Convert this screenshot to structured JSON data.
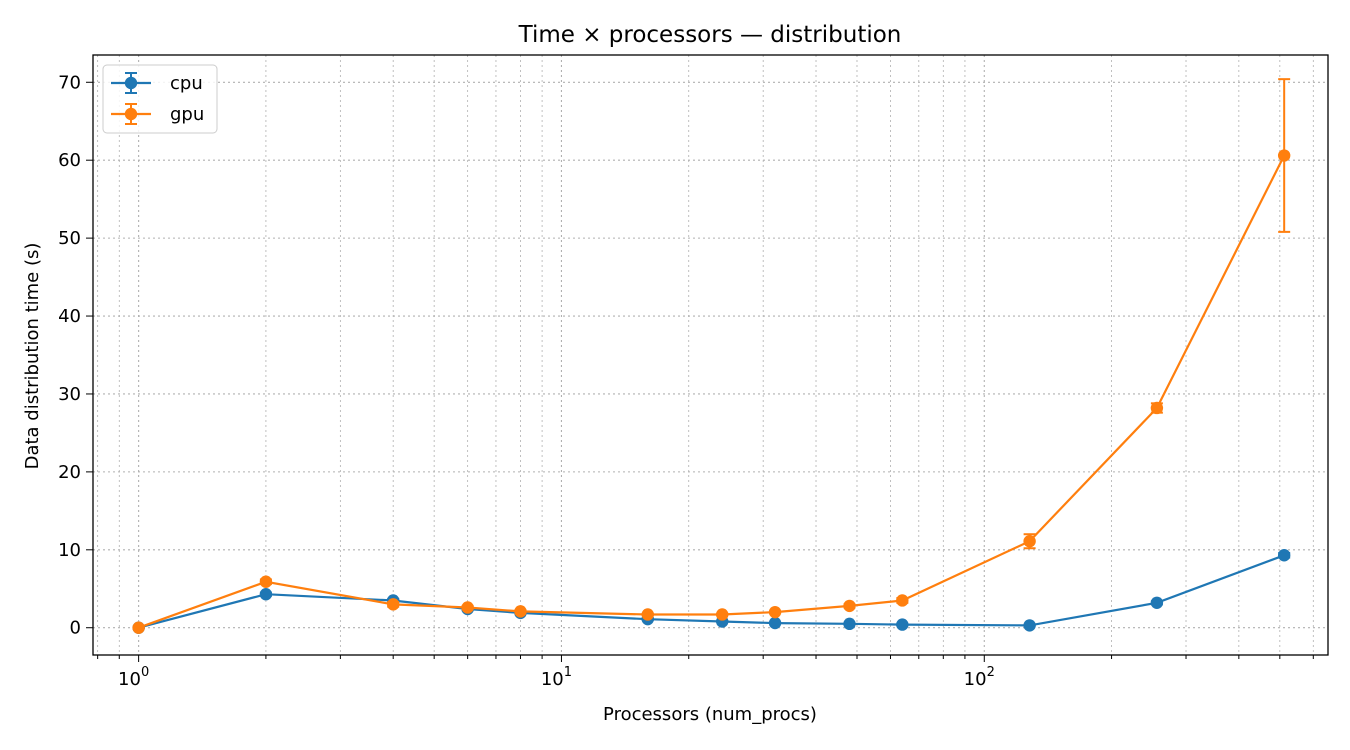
{
  "chart_data": {
    "type": "line",
    "title": "Time × processors — distribution",
    "xlabel": "Processors (num_procs)",
    "ylabel": "Data distribution time (s)",
    "xscale": "log",
    "xlim": [
      0.78,
      650
    ],
    "ylim": [
      -3.5,
      73.5
    ],
    "x_ticks": [
      {
        "value": 1,
        "base": "10",
        "exp": "0"
      },
      {
        "value": 10,
        "base": "10",
        "exp": "1"
      },
      {
        "value": 100,
        "base": "10",
        "exp": "2"
      }
    ],
    "y_ticks": [
      0,
      10,
      20,
      30,
      40,
      50,
      60,
      70
    ],
    "grid": true,
    "legend_position": "top-left",
    "series": [
      {
        "name": "cpu",
        "color": "#1f77b4",
        "x": [
          1,
          2,
          4,
          6,
          8,
          16,
          24,
          32,
          48,
          64,
          128,
          256,
          512
        ],
        "values": [
          0.0,
          4.3,
          3.5,
          2.4,
          1.9,
          1.1,
          0.8,
          0.6,
          0.5,
          0.4,
          0.3,
          3.2,
          9.3
        ],
        "errors": [
          0.05,
          0.2,
          0.2,
          0.15,
          0.1,
          0.1,
          0.05,
          0.05,
          0.05,
          0.05,
          0.05,
          0.2,
          0.3
        ]
      },
      {
        "name": "gpu",
        "color": "#ff7f0e",
        "x": [
          1,
          2,
          4,
          6,
          8,
          16,
          24,
          32,
          48,
          64,
          128,
          256,
          512
        ],
        "values": [
          0.0,
          5.9,
          3.0,
          2.6,
          2.1,
          1.7,
          1.7,
          2.0,
          2.8,
          3.5,
          11.1,
          28.2,
          60.6
        ],
        "errors": [
          0.05,
          0.3,
          0.3,
          0.2,
          0.15,
          0.1,
          0.1,
          0.1,
          0.2,
          0.3,
          0.9,
          0.6,
          9.8
        ]
      }
    ]
  }
}
